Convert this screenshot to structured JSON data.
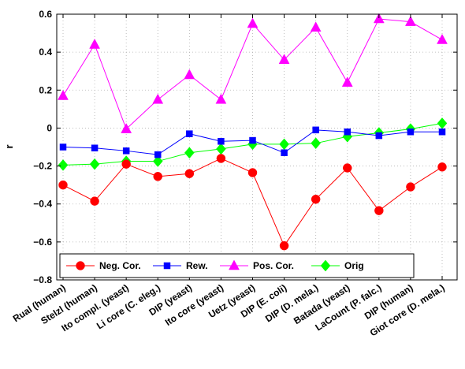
{
  "chart_data": {
    "type": "line",
    "title": "",
    "xlabel": "",
    "ylabel": "r",
    "ylim": [
      -0.8,
      0.6
    ],
    "yticks": [
      -0.8,
      -0.6,
      -0.4,
      -0.2,
      0,
      0.2,
      0.4,
      0.6
    ],
    "ytick_labels": [
      "−0.8",
      "−0.6",
      "−0.4",
      "−0.2",
      "0",
      "0.2",
      "0.4",
      "0.6"
    ],
    "grid": true,
    "legend_position": "bottom",
    "categories": [
      "Rual  (human)",
      "Stelzl (human)",
      "Ito compl. (yeast)",
      "Li core (C. eleg.)",
      "DIP (yeast)",
      "Ito core (yeast)",
      "Uetz (yeast)",
      "DIP (E. coli)",
      "DIP (D. mela.)",
      "Batada (yeast)",
      "LaCount (P. falc.)",
      "DIP (human)",
      "Giot core (D. mela.)"
    ],
    "series": [
      {
        "name": "Neg. Cor.",
        "color": "#ff0000",
        "marker": "circle",
        "values": [
          -0.3,
          -0.385,
          -0.19,
          -0.255,
          -0.24,
          -0.16,
          -0.235,
          -0.62,
          -0.375,
          -0.21,
          -0.435,
          -0.31,
          -0.205
        ]
      },
      {
        "name": "Rew.",
        "color": "#0000ff",
        "marker": "square",
        "values": [
          -0.1,
          -0.105,
          -0.12,
          -0.14,
          -0.03,
          -0.07,
          -0.065,
          -0.13,
          -0.01,
          -0.02,
          -0.04,
          -0.02,
          -0.02
        ]
      },
      {
        "name": "Pos. Cor.",
        "color": "#ff00ff",
        "marker": "triangle",
        "values": [
          0.17,
          0.44,
          -0.005,
          0.15,
          0.28,
          0.15,
          0.55,
          0.36,
          0.53,
          0.24,
          0.575,
          0.56,
          0.465
        ]
      },
      {
        "name": "Orig",
        "color": "#00ff00",
        "marker": "diamond",
        "values": [
          -0.195,
          -0.19,
          -0.175,
          -0.175,
          -0.13,
          -0.11,
          -0.085,
          -0.085,
          -0.08,
          -0.045,
          -0.025,
          -0.005,
          0.025
        ]
      }
    ]
  }
}
